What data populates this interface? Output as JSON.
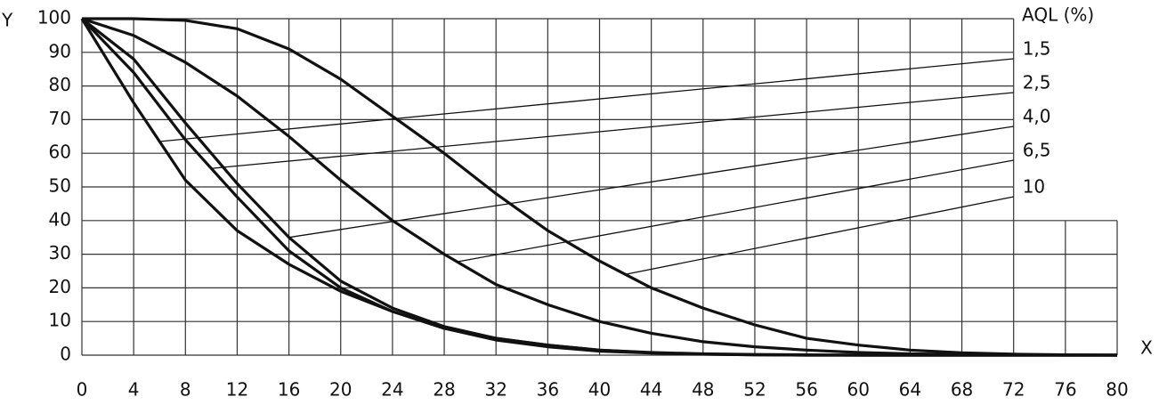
{
  "chart_data": {
    "type": "line",
    "x_label": "X",
    "y_label": "Y",
    "legend_title": "AQL (%)",
    "x": [
      0,
      4,
      8,
      12,
      16,
      20,
      24,
      28,
      32,
      36,
      40,
      44,
      48,
      52,
      56,
      60,
      64,
      68,
      72,
      76,
      80
    ],
    "series": [
      {
        "name": "1,5",
        "color": "#111111",
        "values": [
          100,
          75,
          52,
          37,
          27,
          19,
          13,
          8,
          5,
          3,
          1.5,
          0.8,
          0.4,
          0.2,
          0.1,
          0,
          0,
          0,
          0,
          0,
          0
        ]
      },
      {
        "name": "2,5",
        "color": "#111111",
        "values": [
          100,
          84,
          64,
          47,
          31,
          20,
          13,
          8,
          4.5,
          2.5,
          1.2,
          0.6,
          0.3,
          0.1,
          0,
          0,
          0,
          0,
          0,
          0,
          0
        ]
      },
      {
        "name": "4,0",
        "color": "#111111",
        "values": [
          100,
          88,
          69,
          51,
          35,
          22,
          14,
          8.5,
          5,
          3,
          1.5,
          0.7,
          0.3,
          0.1,
          0,
          0,
          0,
          0,
          0,
          0,
          0
        ]
      },
      {
        "name": "6,5",
        "color": "#111111",
        "values": [
          100,
          95,
          87,
          77,
          65,
          52,
          40,
          30,
          21,
          15,
          10,
          6.5,
          4,
          2.5,
          1.5,
          0.8,
          0.4,
          0.2,
          0.1,
          0,
          0
        ]
      },
      {
        "name": "10",
        "color": "#111111",
        "values": [
          100,
          100,
          99.5,
          97,
          91,
          82,
          71,
          60,
          48,
          37,
          28,
          20,
          14,
          9,
          5,
          3,
          1.5,
          0.7,
          0.3,
          0.1,
          0
        ]
      }
    ],
    "xlim": [
      0,
      80
    ],
    "xticks": [
      0,
      4,
      8,
      12,
      16,
      20,
      24,
      28,
      32,
      36,
      40,
      44,
      48,
      52,
      56,
      60,
      64,
      68,
      72,
      76,
      80
    ],
    "ylim": [
      0,
      100
    ],
    "yticks": [
      0,
      10,
      20,
      30,
      40,
      50,
      60,
      70,
      80,
      90,
      100
    ],
    "grid": true
  }
}
